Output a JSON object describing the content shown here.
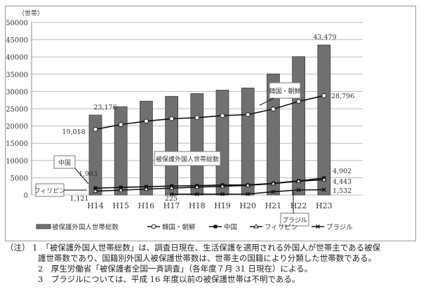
{
  "chart_data": {
    "type": "bar+line",
    "ylabel": "（世帯）",
    "ylim": [
      0,
      50000
    ],
    "yticks": [
      0,
      5000,
      10000,
      15000,
      20000,
      25000,
      30000,
      35000,
      40000,
      45000,
      50000
    ],
    "categories": [
      "H14",
      "H15",
      "H16",
      "H17",
      "H18",
      "H19",
      "H20",
      "H21",
      "H22",
      "H23"
    ],
    "bar_series": {
      "name": "被保護外国人世帯総数",
      "values": [
        23176,
        25600,
        27200,
        28600,
        29400,
        30400,
        31000,
        35100,
        40100,
        43479
      ]
    },
    "series": [
      {
        "name": "韓国・朝鮮",
        "marker": "circle",
        "values": [
          19018,
          20400,
          21400,
          22100,
          22400,
          23000,
          23300,
          24900,
          27100,
          28796
        ]
      },
      {
        "name": "中国",
        "marker": "square",
        "values": [
          1983,
          2200,
          2400,
          2600,
          2700,
          2900,
          2900,
          3400,
          4100,
          4902
        ]
      },
      {
        "name": "フィリピン",
        "marker": "triangle",
        "values": [
          1121,
          1400,
          1700,
          2000,
          2300,
          2500,
          2800,
          3300,
          4000,
          4443
        ]
      },
      {
        "name": "ブラジル",
        "marker": "x",
        "values": [
          null,
          null,
          null,
          225,
          250,
          250,
          280,
          950,
          1450,
          1532
        ]
      }
    ],
    "data_labels": [
      "23,176",
      "43,479",
      "19,018",
      "28,796",
      "1,983",
      "1,121",
      "225",
      "4,902",
      "4,443",
      "1,532"
    ],
    "callouts": {
      "korea": "韓国・朝鮮",
      "total": "被保護外国人世帯総数",
      "china": "中国",
      "philippines": "フィリピン",
      "brazil": "ブラジル"
    },
    "legend_position": "bottom",
    "grid": true
  },
  "notes": {
    "prefix": "（注）",
    "n1a": "1　「被保護外国人世帯総数」は、調査日現在、生活保護を適用される外国人が世帯主である被保",
    "n1b": "護世帯数であり、国籍別外国人被保護世帯数は、世帯主の国籍により分類した世帯数である。",
    "n2": "2　厚生労働省「被保護者全国一斉調査」（各年度７月 31 日現在）による。",
    "n3": "3　ブラジルについては、平成 16 年度以前の被保護世帯は不明である。"
  }
}
